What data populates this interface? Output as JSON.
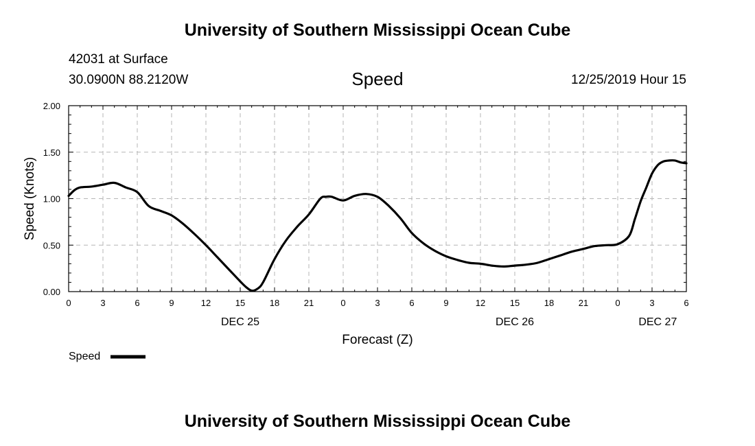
{
  "header": {
    "title": "University of Southern Mississippi Ocean Cube",
    "station": "42031 at Surface",
    "coords": "30.0900N 88.2120W",
    "timestamp": "12/25/2019 Hour 15"
  },
  "footer": {
    "title": "University of Southern Mississippi Ocean Cube"
  },
  "chart_data": {
    "type": "line",
    "title": "Speed",
    "xlabel": "Forecast (Z)",
    "ylabel": "Speed (Knots)",
    "ylim": [
      0,
      2
    ],
    "y_ticks": [
      "0.00",
      "0.50",
      "1.00",
      "1.50",
      "2.00"
    ],
    "x_ticks": [
      "0",
      "3",
      "6",
      "9",
      "12",
      "15",
      "18",
      "21",
      "0",
      "3",
      "6",
      "9",
      "12",
      "15",
      "18",
      "21",
      "0",
      "3",
      "6"
    ],
    "day_labels": [
      "DEC 25",
      "DEC 26",
      "DEC 27"
    ],
    "grid": true,
    "legend_position": "bottom-left",
    "series": [
      {
        "name": "Speed",
        "color": "#000000",
        "x_hours": [
          0,
          0.5,
          1,
          2,
          3,
          4,
          5,
          6,
          7,
          8,
          9,
          10,
          11,
          12,
          13,
          14,
          15,
          15.5,
          16,
          16.5,
          17,
          18,
          19,
          20,
          21,
          22,
          22.5,
          23,
          24,
          25,
          26,
          27,
          28,
          29,
          30,
          31,
          32,
          33,
          34,
          35,
          36,
          37,
          38,
          39,
          40,
          41,
          42,
          43,
          44,
          45,
          46,
          47,
          48,
          49,
          49.5,
          50,
          50.5,
          51,
          51.5,
          52,
          52.5,
          53,
          53.5,
          54
        ],
        "values": [
          1.03,
          1.09,
          1.12,
          1.13,
          1.15,
          1.17,
          1.12,
          1.07,
          0.92,
          0.87,
          0.82,
          0.73,
          0.62,
          0.5,
          0.37,
          0.24,
          0.11,
          0.05,
          0.01,
          0.03,
          0.1,
          0.35,
          0.55,
          0.7,
          0.83,
          1.0,
          1.02,
          1.02,
          0.98,
          1.03,
          1.05,
          1.02,
          0.92,
          0.79,
          0.63,
          0.52,
          0.44,
          0.38,
          0.34,
          0.31,
          0.3,
          0.28,
          0.27,
          0.28,
          0.29,
          0.31,
          0.35,
          0.39,
          0.43,
          0.46,
          0.49,
          0.5,
          0.51,
          0.6,
          0.78,
          0.97,
          1.12,
          1.27,
          1.36,
          1.4,
          1.41,
          1.41,
          1.39,
          1.38
        ]
      }
    ]
  }
}
